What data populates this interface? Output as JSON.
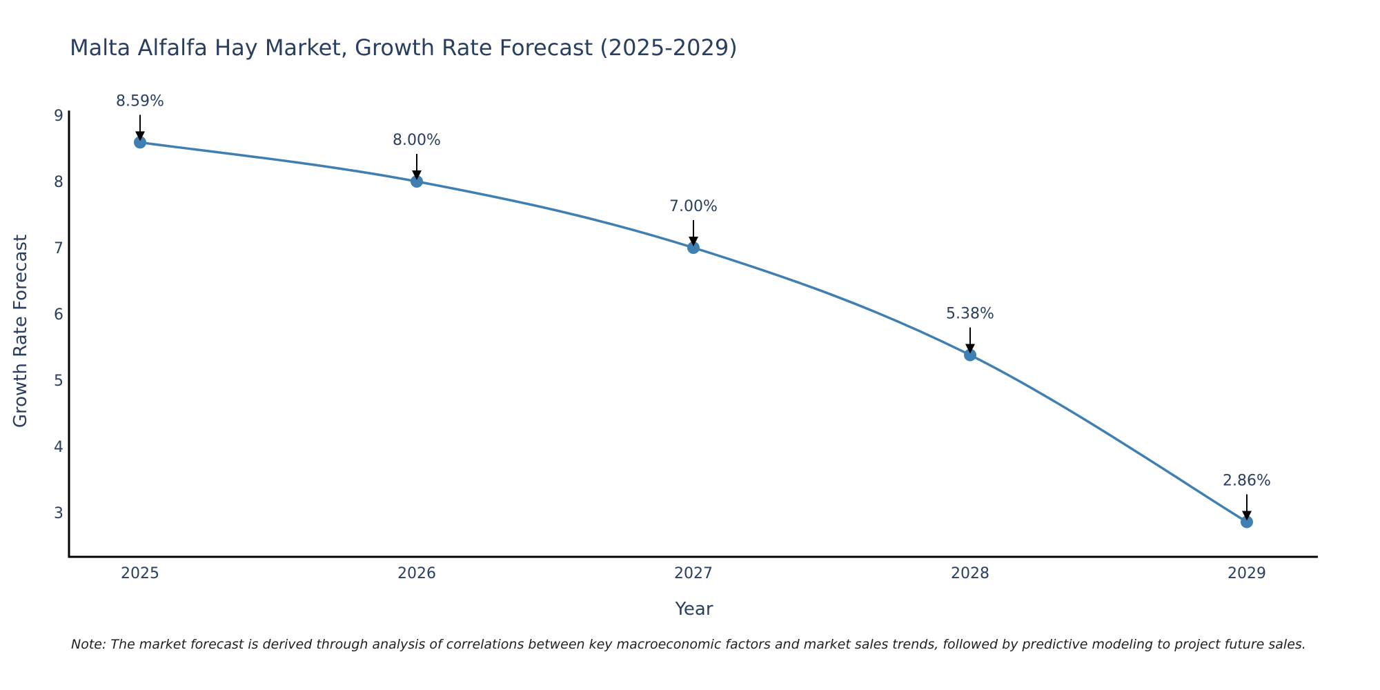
{
  "chart_data": {
    "type": "line",
    "title": "Malta Alfalfa Hay Market, Growth Rate Forecast (2025-2029)",
    "xlabel": "Year",
    "ylabel": "Growth Rate Forecast",
    "categories": [
      "2025",
      "2026",
      "2027",
      "2028",
      "2029"
    ],
    "series": [
      {
        "name": "Growth Rate Forecast",
        "values": [
          8.59,
          8.0,
          7.0,
          5.38,
          2.86
        ],
        "color": "#3f7fb1"
      }
    ],
    "annotations": [
      "8.59%",
      "8.00%",
      "7.00%",
      "5.38%",
      "2.86%"
    ],
    "yticks": [
      "3",
      "4",
      "5",
      "6",
      "7",
      "8",
      "9"
    ],
    "ylim": [
      2.33,
      9.07
    ],
    "grid": false,
    "note": "Note: The market forecast is derived through analysis of correlations between key macroeconomic factors and market sales trends, followed by predictive modeling to project future sales."
  },
  "colors": {
    "line": "#3f7fb1",
    "marker": "#3f7fb1",
    "axis": "#000000",
    "text": "#2a3f5f",
    "arrow": "#000000"
  }
}
